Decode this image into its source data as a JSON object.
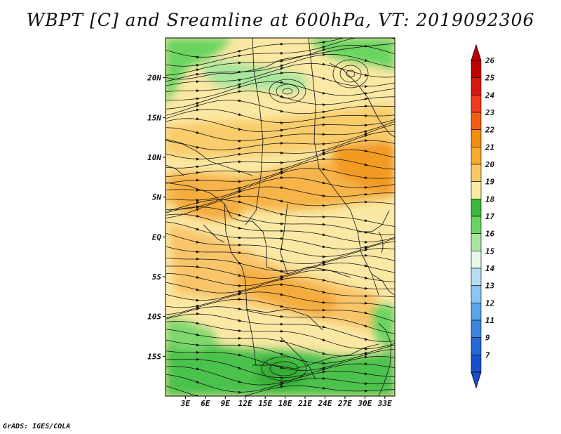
{
  "title": "WBPT [C] and Sreamline at 600hPa, VT: 2019092306",
  "footer": "GrADS: IGES/COLA",
  "map": {
    "lon_labels": [
      "3E",
      "6E",
      "9E",
      "12E",
      "15E",
      "18E",
      "21E",
      "24E",
      "27E",
      "30E",
      "33E"
    ],
    "lat_labels": [
      "20N",
      "15N",
      "10N",
      "5N",
      "EQ",
      "5S",
      "10S",
      "15S"
    ],
    "lon_range": [
      0,
      34.5
    ],
    "lat_range": [
      -20,
      25
    ]
  },
  "colorbar": {
    "levels": [
      "26",
      "25",
      "24",
      "23",
      "22",
      "21",
      "20",
      "19",
      "18",
      "17",
      "16",
      "15",
      "14",
      "13",
      "12",
      "11",
      "9",
      "7"
    ],
    "colors": [
      "#c00000",
      "#d81810",
      "#ef3a1c",
      "#f35f12",
      "#f48c10",
      "#f6ac2c",
      "#f9c964",
      "#faeaa4",
      "#3cb83c",
      "#6ad461",
      "#a9e69d",
      "#e6f8ea",
      "#b7dcf6",
      "#8cc4f2",
      "#5aa4ea",
      "#3a84e0",
      "#2668d6",
      "#1a4fcc"
    ]
  },
  "colors": {
    "warm_orange": "#f4ac3c",
    "light_orange": "#f9cc6c",
    "pale_yellow": "#fbe8a4",
    "green": "#4cc24c",
    "light_green": "#7ed86e"
  }
}
